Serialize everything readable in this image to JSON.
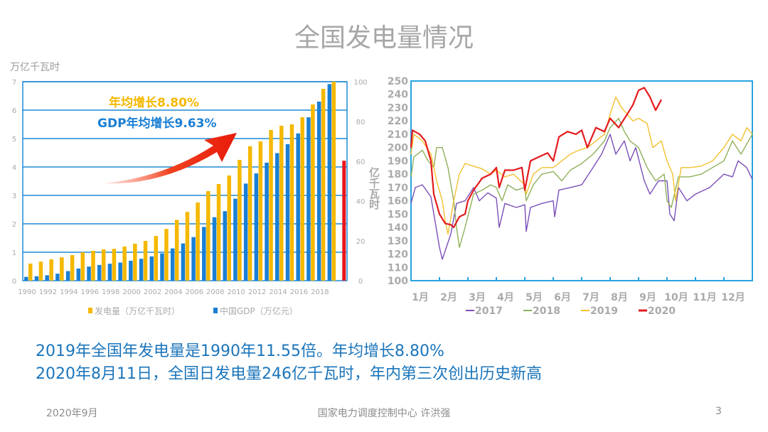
{
  "slide": {
    "title": "全国发电量情况",
    "line1": "2019年全国年发电量是1990年11.55倍。年均增长8.80%",
    "line2": "2020年8月11日，全国日发电量246亿千瓦时，年内第三次创出历史新高",
    "footer_date": "2020年9月",
    "footer_author": "国家电力调度控制中心 许洪强",
    "page_number": "3"
  },
  "colors": {
    "title": "#a6a6a6",
    "text_blue": "#1b75bb",
    "grid_blue": "#1e8ad6",
    "gen_yellow": "#f5b800",
    "gdp_blue": "#1a7fd4",
    "y2020_red": "#e8141b",
    "l2017": "#7b4fb8",
    "l2018": "#8fb05a",
    "l2019": "#f2c12e",
    "l2020": "#e41a1c"
  },
  "chart_data": [
    {
      "type": "bar",
      "ylabel_left": "万亿千瓦时",
      "ylabel_right": "亿千瓦时",
      "ylim_left": [
        0,
        7
      ],
      "ylim_right": [
        0,
        100
      ],
      "yticks_left": [
        "0",
        "1",
        "2",
        "3",
        "4",
        "5",
        "6",
        "7"
      ],
      "yticks_right": [
        "0",
        "20",
        "40",
        "60",
        "80",
        "100"
      ],
      "grid": true,
      "categories": [
        "1990",
        "1991",
        "1992",
        "1993",
        "1994",
        "1995",
        "1996",
        "1997",
        "1998",
        "1999",
        "2000",
        "2001",
        "2002",
        "2003",
        "2004",
        "2005",
        "2006",
        "2007",
        "2008",
        "2009",
        "2010",
        "2011",
        "2012",
        "2013",
        "2014",
        "2015",
        "2016",
        "2017",
        "2018",
        "2019"
      ],
      "xtick_labels": [
        "1990",
        "1992",
        "1994",
        "1996",
        "1998",
        "2000",
        "2002",
        "2004",
        "2006",
        "2008",
        "2010",
        "2012",
        "2014",
        "2016",
        "2018"
      ],
      "series": [
        {
          "name": "发电量（万亿千瓦时）",
          "axis": "left",
          "values": [
            0.6,
            0.67,
            0.75,
            0.82,
            0.9,
            1.0,
            1.05,
            1.1,
            1.12,
            1.2,
            1.3,
            1.4,
            1.57,
            1.82,
            2.14,
            2.42,
            2.75,
            3.15,
            3.4,
            3.7,
            4.25,
            4.73,
            4.9,
            5.3,
            5.45,
            5.5,
            5.75,
            6.2,
            6.75,
            7.0
          ]
        },
        {
          "name": "中国GDP（万亿元）",
          "axis": "right",
          "values": [
            1.9,
            2.2,
            2.7,
            3.5,
            4.8,
            6.1,
            7.1,
            7.9,
            8.5,
            9.1,
            10.0,
            11.0,
            12.2,
            13.7,
            16.2,
            18.7,
            21.9,
            27.0,
            31.9,
            34.9,
            41.2,
            48.8,
            53.9,
            59.3,
            64.1,
            68.6,
            74.0,
            82.1,
            90.0,
            98.8
          ]
        }
      ],
      "extra_bar": {
        "label": "2020",
        "axis": "left",
        "value": 4.22
      },
      "annotations": [
        "年均增长8.80%",
        "GDP年均增长9.63%"
      ],
      "legend": "bottom"
    },
    {
      "type": "line",
      "ylim": [
        100,
        250
      ],
      "yticks": [
        "100",
        "110",
        "120",
        "130",
        "140",
        "150",
        "160",
        "170",
        "180",
        "190",
        "200",
        "210",
        "220",
        "230",
        "240",
        "250"
      ],
      "xtick_labels": [
        "1月",
        "2月",
        "3月",
        "4月",
        "5月",
        "6月",
        "7月",
        "8月",
        "9月",
        "10月",
        "11月",
        "12月"
      ],
      "xlim_months": [
        0,
        12
      ],
      "legend": "bottom",
      "series": [
        {
          "name": "2017",
          "points": [
            [
              0,
              158
            ],
            [
              0.15,
              170
            ],
            [
              0.4,
              172
            ],
            [
              0.7,
              163
            ],
            [
              1.0,
              125
            ],
            [
              1.1,
              116
            ],
            [
              1.4,
              135
            ],
            [
              1.6,
              158
            ],
            [
              1.9,
              160
            ],
            [
              2.2,
              170
            ],
            [
              2.4,
              160
            ],
            [
              2.7,
              166
            ],
            [
              3.0,
              162
            ],
            [
              3.1,
              140
            ],
            [
              3.3,
              158
            ],
            [
              3.7,
              155
            ],
            [
              4.0,
              157
            ],
            [
              4.05,
              137
            ],
            [
              4.2,
              155
            ],
            [
              4.6,
              158
            ],
            [
              5.0,
              160
            ],
            [
              5.05,
              148
            ],
            [
              5.2,
              168
            ],
            [
              5.6,
              170
            ],
            [
              6.0,
              172
            ],
            [
              6.4,
              185
            ],
            [
              6.7,
              195
            ],
            [
              7.0,
              210
            ],
            [
              7.2,
              195
            ],
            [
              7.5,
              205
            ],
            [
              7.7,
              190
            ],
            [
              7.9,
              200
            ],
            [
              8.2,
              175
            ],
            [
              8.4,
              165
            ],
            [
              8.7,
              175
            ],
            [
              9.0,
              175
            ],
            [
              9.1,
              150
            ],
            [
              9.25,
              145
            ],
            [
              9.4,
              170
            ],
            [
              9.7,
              160
            ],
            [
              10.0,
              165
            ],
            [
              10.5,
              170
            ],
            [
              11.0,
              180
            ],
            [
              11.3,
              178
            ],
            [
              11.5,
              190
            ],
            [
              11.8,
              185
            ],
            [
              12.0,
              176
            ]
          ]
        },
        {
          "name": "2018",
          "points": [
            [
              0,
              178
            ],
            [
              0.1,
              193
            ],
            [
              0.4,
              198
            ],
            [
              0.6,
              190
            ],
            [
              0.8,
              185
            ],
            [
              0.9,
              200
            ],
            [
              1.1,
              200
            ],
            [
              1.3,
              185
            ],
            [
              1.5,
              160
            ],
            [
              1.6,
              140
            ],
            [
              1.7,
              125
            ],
            [
              1.9,
              140
            ],
            [
              2.2,
              165
            ],
            [
              2.5,
              168
            ],
            [
              2.8,
              172
            ],
            [
              3.0,
              170
            ],
            [
              3.2,
              160
            ],
            [
              3.4,
              172
            ],
            [
              3.7,
              168
            ],
            [
              4.0,
              170
            ],
            [
              4.05,
              160
            ],
            [
              4.3,
              172
            ],
            [
              4.6,
              180
            ],
            [
              5.0,
              182
            ],
            [
              5.3,
              175
            ],
            [
              5.6,
              183
            ],
            [
              6.0,
              188
            ],
            [
              6.4,
              195
            ],
            [
              6.8,
              205
            ],
            [
              7.0,
              215
            ],
            [
              7.3,
              222
            ],
            [
              7.5,
              212
            ],
            [
              7.7,
              205
            ],
            [
              8.0,
              200
            ],
            [
              8.3,
              185
            ],
            [
              8.6,
              175
            ],
            [
              8.9,
              180
            ],
            [
              9.0,
              160
            ],
            [
              9.15,
              155
            ],
            [
              9.4,
              178
            ],
            [
              9.8,
              178
            ],
            [
              10.2,
              180
            ],
            [
              10.6,
              185
            ],
            [
              11.0,
              190
            ],
            [
              11.3,
              205
            ],
            [
              11.6,
              195
            ],
            [
              12.0,
              210
            ]
          ]
        },
        {
          "name": "2019",
          "points": [
            [
              0,
              195
            ],
            [
              0.1,
              210
            ],
            [
              0.4,
              205
            ],
            [
              0.7,
              195
            ],
            [
              0.9,
              175
            ],
            [
              1.1,
              160
            ],
            [
              1.2,
              145
            ],
            [
              1.3,
              135
            ],
            [
              1.5,
              160
            ],
            [
              1.7,
              180
            ],
            [
              1.9,
              188
            ],
            [
              2.2,
              186
            ],
            [
              2.5,
              184
            ],
            [
              2.8,
              180
            ],
            [
              3.0,
              183
            ],
            [
              3.3,
              178
            ],
            [
              3.6,
              180
            ],
            [
              4.0,
              172
            ],
            [
              4.05,
              165
            ],
            [
              4.3,
              180
            ],
            [
              4.6,
              185
            ],
            [
              5.0,
              185
            ],
            [
              5.3,
              190
            ],
            [
              5.6,
              195
            ],
            [
              5.9,
              198
            ],
            [
              6.2,
              200
            ],
            [
              6.5,
              205
            ],
            [
              6.8,
              210
            ],
            [
              7.0,
              225
            ],
            [
              7.2,
              238
            ],
            [
              7.4,
              230
            ],
            [
              7.6,
              225
            ],
            [
              7.8,
              220
            ],
            [
              8.0,
              222
            ],
            [
              8.3,
              218
            ],
            [
              8.5,
              200
            ],
            [
              8.8,
              205
            ],
            [
              9.0,
              190
            ],
            [
              9.2,
              180
            ],
            [
              9.3,
              160
            ],
            [
              9.5,
              185
            ],
            [
              9.8,
              185
            ],
            [
              10.2,
              186
            ],
            [
              10.6,
              190
            ],
            [
              11.0,
              200
            ],
            [
              11.3,
              210
            ],
            [
              11.6,
              205
            ],
            [
              11.8,
              215
            ],
            [
              12.0,
              210
            ]
          ]
        },
        {
          "name": "2020",
          "points": [
            [
              0,
              200
            ],
            [
              0.05,
              213
            ],
            [
              0.3,
              210
            ],
            [
              0.5,
              205
            ],
            [
              0.7,
              190
            ],
            [
              0.8,
              165
            ],
            [
              1.0,
              150
            ],
            [
              1.2,
              143
            ],
            [
              1.4,
              142
            ],
            [
              1.5,
              140
            ],
            [
              1.7,
              148
            ],
            [
              1.9,
              150
            ],
            [
              2.0,
              160
            ],
            [
              2.2,
              168
            ],
            [
              2.5,
              177
            ],
            [
              2.8,
              180
            ],
            [
              3.0,
              185
            ],
            [
              3.1,
              170
            ],
            [
              3.3,
              183
            ],
            [
              3.6,
              183
            ],
            [
              3.9,
              185
            ],
            [
              4.0,
              168
            ],
            [
              4.2,
              190
            ],
            [
              4.5,
              193
            ],
            [
              4.8,
              196
            ],
            [
              5.0,
              190
            ],
            [
              5.2,
              208
            ],
            [
              5.5,
              212
            ],
            [
              5.8,
              210
            ],
            [
              6.0,
              213
            ],
            [
              6.2,
              200
            ],
            [
              6.5,
              215
            ],
            [
              6.8,
              212
            ],
            [
              7.0,
              222
            ],
            [
              7.3,
              215
            ],
            [
              7.6,
              225
            ],
            [
              7.8,
              232
            ],
            [
              8.0,
              243
            ],
            [
              8.2,
              245
            ],
            [
              8.4,
              238
            ],
            [
              8.6,
              228
            ],
            [
              8.8,
              236
            ]
          ]
        }
      ]
    }
  ]
}
